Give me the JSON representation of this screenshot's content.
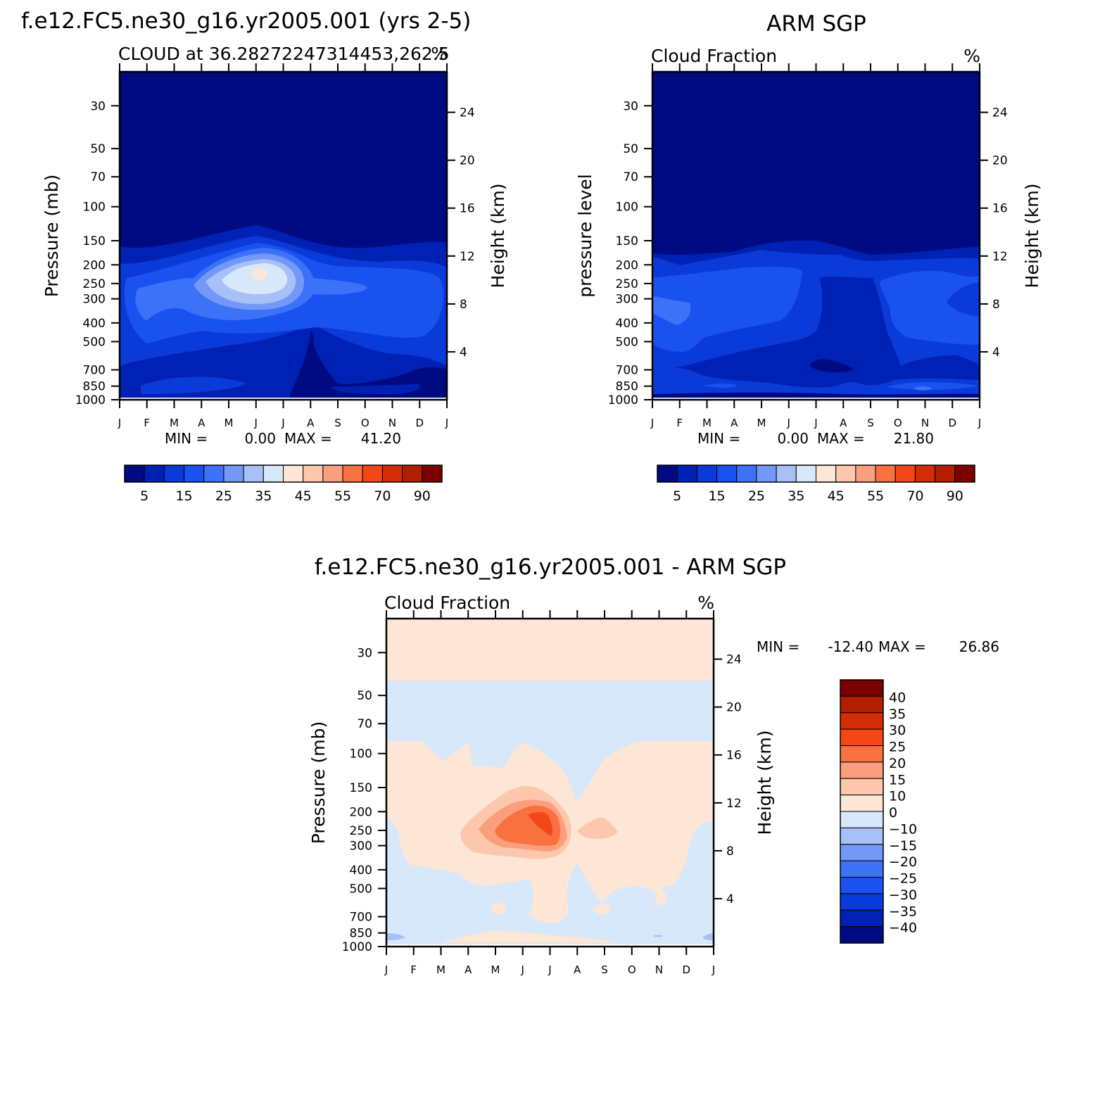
{
  "panels": [
    {
      "id": "model",
      "title": "f.e12.FC5.ne30_g16.yr2005.001 (yrs 2-5)",
      "left_subtitle": "CLOUD at 36.28272247314453,262.5",
      "right_subtitle": "%",
      "y_label_left": "Pressure (mb)",
      "y_label_right": "Height (km)",
      "min_label": "MIN =",
      "min_value": "0.00",
      "max_label": "MAX =",
      "max_value": "41.20"
    },
    {
      "id": "obs",
      "title": "ARM SGP",
      "left_subtitle": "Cloud Fraction",
      "right_subtitle": "%",
      "y_label_left": "pressure level",
      "y_label_right": "Height (km)",
      "min_label": "MIN =",
      "min_value": "0.00",
      "max_label": "MAX =",
      "max_value": "21.80"
    },
    {
      "id": "diff",
      "title": "f.e12.FC5.ne30_g16.yr2005.001 - ARM SGP",
      "left_subtitle": "Cloud Fraction",
      "right_subtitle": "%",
      "y_label_left": "Pressure (mb)",
      "y_label_right": "Height (km)",
      "min_label": "MIN =",
      "min_value": "-12.40",
      "max_label": "MAX =",
      "max_value": "26.86"
    }
  ],
  "colorbar_seq": {
    "colors": [
      "#000a82",
      "#0022b4",
      "#0a3ad8",
      "#1a52f0",
      "#3c72f8",
      "#7398f8",
      "#a8c0f8",
      "#d6e8fa",
      "#fde6d6",
      "#fdc7ae",
      "#fb9e7e",
      "#f8713f",
      "#f44718",
      "#d42c06",
      "#b21f00",
      "#7c0002"
    ],
    "labels": [
      "5",
      "15",
      "25",
      "35",
      "45",
      "55",
      "70",
      "90"
    ]
  },
  "colorbar_diff": {
    "colors": [
      "#7c0002",
      "#b21f00",
      "#d42c06",
      "#f44718",
      "#f8713f",
      "#fb9e7e",
      "#fdc7ae",
      "#fde6d6",
      "#d6e8fa",
      "#a8c0f8",
      "#7398f8",
      "#3c72f8",
      "#1a52f0",
      "#0a3ad8",
      "#0022b4",
      "#000a82"
    ],
    "labels": [
      "40",
      "35",
      "30",
      "25",
      "20",
      "15",
      "10",
      "0",
      "−10",
      "−15",
      "−20",
      "−25",
      "−30",
      "−35",
      "−40"
    ]
  },
  "chart_data": [
    {
      "type": "heatmap",
      "title": "f.e12.FC5.ne30_g16.yr2005.001 (yrs 2-5)",
      "subtitle": "CLOUD at 36.28272247314453,262.5",
      "units": "%",
      "x_categories": [
        "J",
        "F",
        "M",
        "A",
        "M",
        "J",
        "J",
        "A",
        "S",
        "O",
        "N",
        "D",
        "J"
      ],
      "y_pressure_ticks_mb": [
        30,
        50,
        70,
        100,
        150,
        200,
        250,
        300,
        400,
        500,
        700,
        850,
        1000
      ],
      "y_height_ticks_km": [
        4,
        8,
        12,
        16,
        20,
        24
      ],
      "ylabel_left": "Pressure (mb)",
      "ylabel_right": "Height (km)",
      "min": 0.0,
      "max": 41.2,
      "peak_region": {
        "months": "May-Jul",
        "pressure_mb": "200-300",
        "value_approx": 40
      }
    },
    {
      "type": "heatmap",
      "title": "ARM SGP",
      "subtitle": "Cloud Fraction",
      "units": "%",
      "x_categories": [
        "J",
        "F",
        "M",
        "A",
        "M",
        "J",
        "J",
        "A",
        "S",
        "O",
        "N",
        "D",
        "J"
      ],
      "y_pressure_ticks_mb": [
        30,
        50,
        70,
        100,
        150,
        200,
        250,
        300,
        400,
        500,
        700,
        850,
        1000
      ],
      "y_height_ticks_km": [
        4,
        8,
        12,
        16,
        20,
        24
      ],
      "ylabel_left": "pressure level",
      "ylabel_right": "Height (km)",
      "min": 0.0,
      "max": 21.8
    },
    {
      "type": "heatmap",
      "title": "f.e12.FC5.ne30_g16.yr2005.001 - ARM SGP",
      "subtitle": "Cloud Fraction",
      "units": "%",
      "x_categories": [
        "J",
        "F",
        "M",
        "A",
        "M",
        "J",
        "J",
        "A",
        "S",
        "O",
        "N",
        "D",
        "J"
      ],
      "y_pressure_ticks_mb": [
        30,
        50,
        70,
        100,
        150,
        200,
        250,
        300,
        400,
        500,
        700,
        850,
        1000
      ],
      "y_height_ticks_km": [
        4,
        8,
        12,
        16,
        20,
        24
      ],
      "ylabel_left": "Pressure (mb)",
      "ylabel_right": "Height (km)",
      "min": -12.4,
      "max": 26.86,
      "peak_region": {
        "months": "May-Jul",
        "pressure_mb": "200-300",
        "value_approx": 25
      }
    }
  ]
}
